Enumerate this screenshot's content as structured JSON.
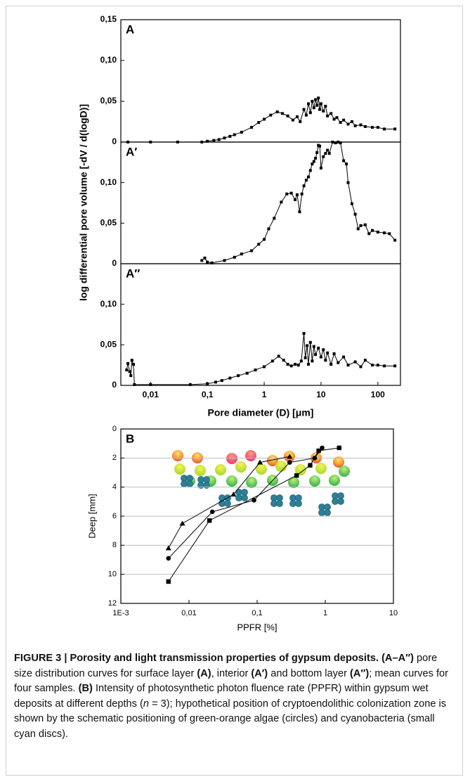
{
  "chart_data": [
    {
      "type": "line",
      "panel_label": "A",
      "xscale": "log",
      "xlim": [
        0.003,
        250
      ],
      "ylim": [
        0,
        0.15
      ],
      "yticks": [
        0,
        {
          "value": 0.05,
          "label": "0,05"
        },
        {
          "value": 0.1,
          "label": "0,10"
        },
        {
          "value": 0.15,
          "label": "0,15"
        }
      ],
      "marker": "square",
      "color": "#000000",
      "x": [
        0.004,
        0.01,
        0.03,
        0.08,
        0.1,
        0.13,
        0.16,
        0.2,
        0.25,
        0.3,
        0.4,
        0.6,
        0.8,
        1,
        1.3,
        1.7,
        2.1,
        2.6,
        3.2,
        3.8,
        4.3,
        5,
        5.5,
        6,
        6.5,
        7,
        7.5,
        8,
        8.5,
        9,
        9.5,
        10,
        11,
        12,
        13,
        15,
        17,
        19,
        22,
        25,
        30,
        35,
        40,
        50,
        60,
        80,
        100,
        130,
        200
      ],
      "values": [
        0,
        0,
        0,
        0,
        0.001,
        0.002,
        0.003,
        0.005,
        0.007,
        0.009,
        0.012,
        0.018,
        0.024,
        0.028,
        0.033,
        0.037,
        0.035,
        0.032,
        0.027,
        0.031,
        0.025,
        0.04,
        0.033,
        0.047,
        0.036,
        0.05,
        0.042,
        0.052,
        0.045,
        0.054,
        0.04,
        0.047,
        0.038,
        0.044,
        0.032,
        0.035,
        0.028,
        0.03,
        0.024,
        0.027,
        0.022,
        0.025,
        0.02,
        0.021,
        0.019,
        0.018,
        0.018,
        0.016,
        0.016
      ]
    },
    {
      "type": "line",
      "panel_label": "A′",
      "ylabel": "log differential pore volume [-dV / d(logD)]",
      "xscale": "log",
      "xlim": [
        0.003,
        250
      ],
      "ylim": [
        0,
        0.15
      ],
      "yticks": [
        0,
        {
          "value": 0.05,
          "label": "0,05"
        },
        {
          "value": 0.1,
          "label": "0,10"
        }
      ],
      "marker": "square",
      "color": "#000000",
      "x": [
        0.08,
        0.09,
        0.1,
        0.12,
        0.2,
        0.3,
        0.4,
        0.6,
        0.8,
        1,
        1.2,
        1.5,
        2,
        2.5,
        3,
        3.5,
        3.8,
        4.2,
        4.6,
        5,
        5.5,
        6,
        6.5,
        7,
        7.5,
        8,
        8.5,
        9,
        9.5,
        10,
        11,
        12,
        13,
        14,
        16,
        18,
        20,
        22,
        25,
        28,
        30,
        35,
        40,
        45,
        50,
        60,
        70,
        80,
        100,
        130,
        160,
        200
      ],
      "values": [
        0.004,
        0.007,
        0.002,
        0.001,
        0.004,
        0.008,
        0.012,
        0.016,
        0.024,
        0.03,
        0.043,
        0.056,
        0.076,
        0.086,
        0.087,
        0.079,
        0.085,
        0.064,
        0.086,
        0.096,
        0.103,
        0.107,
        0.115,
        0.123,
        0.126,
        0.13,
        0.137,
        0.146,
        0.145,
        0.118,
        0.132,
        0.136,
        0.14,
        0.136,
        0.15,
        0.149,
        0.15,
        0.149,
        0.127,
        0.123,
        0.1,
        0.074,
        0.061,
        0.043,
        0.047,
        0.048,
        0.037,
        0.041,
        0.039,
        0.038,
        0.037,
        0.029
      ]
    },
    {
      "type": "line",
      "panel_label": "A″",
      "xlabel": "Pore diameter (D) [μm]",
      "xscale": "log",
      "xlim": [
        0.003,
        250
      ],
      "ylim": [
        0,
        0.15
      ],
      "yticks": [
        0,
        {
          "value": 0.05,
          "label": "0,05"
        },
        {
          "value": 0.1,
          "label": "0,10"
        }
      ],
      "xticks": [
        {
          "value": 0.01,
          "label": "0,01"
        },
        {
          "value": 0.1,
          "label": "0,1"
        },
        1,
        10,
        100
      ],
      "marker": "square",
      "color": "#000000",
      "x": [
        0.0038,
        0.004,
        0.0043,
        0.0045,
        0.0047,
        0.005,
        0.0052,
        0.01,
        0.05,
        0.1,
        0.14,
        0.18,
        0.25,
        0.35,
        0.5,
        0.7,
        1,
        1.4,
        1.8,
        2.2,
        2.6,
        3,
        3.5,
        4,
        4.5,
        5,
        5.3,
        5.7,
        6,
        6.5,
        7,
        7.5,
        8,
        9,
        10,
        11,
        12,
        13,
        15,
        17,
        20,
        25,
        30,
        40,
        50,
        60,
        80,
        100,
        130,
        200
      ],
      "values": [
        0.019,
        0.027,
        0.017,
        0.012,
        0.031,
        0.026,
        0.001,
        0.001,
        0.001,
        0.002,
        0.004,
        0.006,
        0.009,
        0.012,
        0.015,
        0.019,
        0.023,
        0.03,
        0.036,
        0.031,
        0.026,
        0.024,
        0.026,
        0.025,
        0.03,
        0.064,
        0.034,
        0.049,
        0.026,
        0.053,
        0.03,
        0.048,
        0.038,
        0.046,
        0.035,
        0.044,
        0.031,
        0.04,
        0.026,
        0.039,
        0.028,
        0.035,
        0.025,
        0.029,
        0.023,
        0.031,
        0.025,
        0.025,
        0.024,
        0.024
      ]
    },
    {
      "type": "line",
      "panel_label": "B",
      "xlabel": "PPFR [%]",
      "ylabel": "Deep [mm]",
      "xscale": "log",
      "xlim": [
        0.001,
        10
      ],
      "ylim": [
        0,
        12
      ],
      "y_inverted": true,
      "grid": true,
      "xticks": [
        {
          "value": 0.001,
          "label": "1E-3"
        },
        {
          "value": 0.01,
          "label": "0,01"
        },
        {
          "value": 0.1,
          "label": "0,1"
        },
        1,
        10
      ],
      "yticks": [
        0,
        2,
        4,
        6,
        8,
        10,
        12
      ],
      "series": [
        {
          "marker": "square",
          "color": "#000000",
          "x": [
            0.005,
            0.02,
            0.38,
            0.6,
            0.8,
            1.6
          ],
          "values": [
            10.5,
            6.3,
            3.2,
            2.5,
            1.5,
            1.3
          ]
        },
        {
          "marker": "circle",
          "color": "#000000",
          "x": [
            0.005,
            0.022,
            0.09,
            0.3,
            0.7,
            0.9
          ],
          "values": [
            8.9,
            5.7,
            4.9,
            2.3,
            2.0,
            1.3
          ]
        },
        {
          "marker": "triangle",
          "color": "#000000",
          "x": [
            0.005,
            0.008,
            0.045,
            0.11,
            0.3
          ],
          "values": [
            8.2,
            6.5,
            4.5,
            2.3,
            1.9
          ]
        }
      ]
    }
  ],
  "caption": {
    "title": "FIGURE 3 | Porosity and light transmission properties of gypsum deposits.",
    "parts": [
      "(A–A″)",
      " pore size distribution curves for surface layer ",
      "(A)",
      ", interior ",
      "(A′)",
      " and bottom layer ",
      "(A″)",
      "; mean curves for four samples. ",
      "(B)",
      " Intensity of photosynthetic photon fluence rate (PPFR) within gypsum wet deposits at different depths (",
      "n",
      " = 3); hypothetical position of cryptoendolithic colonization zone is shown by the schematic positioning of green-orange algae (circles) and cyanobacteria (small cyan discs)."
    ]
  }
}
